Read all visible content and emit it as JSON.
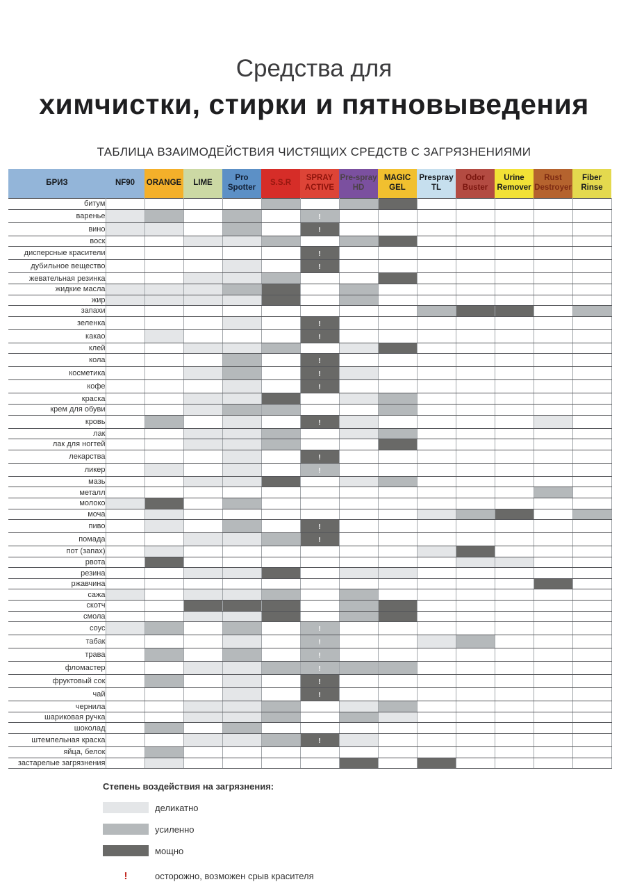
{
  "title": {
    "line1": "Средства для",
    "line2": "химчистки, стирки и пятновыведения"
  },
  "subtitle": "ТАБЛИЦА ВЗАИМОДЕЙСТВИЯ ЧИСТЯЩИХ СРЕДСТВ С ЗАГРЯЗНЕНИЯМИ",
  "brand": {
    "label": "БРИЗ",
    "bg": "#93b5d9",
    "fg": "#16191d"
  },
  "legend": {
    "heading": "Степень воздействия на загрязнения:"
  },
  "chart_data": {
    "type": "table",
    "title": "ТАБЛИЦА ВЗАИМОДЕЙСТВИЯ ЧИСТЯЩИХ СРЕДСТВ С ЗАГРЯЗНЕНИЯМИ",
    "value_codes": {
      "": "нет воздействия",
      "1": "деликатно",
      "2": "усиленно",
      "3": "мощно",
      "!": "осторожно, возможен срыв красителя"
    },
    "intensity": {
      "1": {
        "label": "деликатно",
        "color": "#e4e6e8"
      },
      "2": {
        "label": "усиленно",
        "color": "#b5b9bb"
      },
      "3": {
        "label": "мощно",
        "color": "#696967"
      }
    },
    "warning": {
      "symbol": "!",
      "label": "осторожно, возможен срыв красителя",
      "color": "#c2271f"
    },
    "columns": [
      {
        "label": "NF90",
        "bg": "#93b5d9",
        "fg": "#16191d"
      },
      {
        "label": "ORANGE",
        "bg": "#f4b02a",
        "fg": "#16191d"
      },
      {
        "label": "LIME",
        "bg": "#ccd9a4",
        "fg": "#16191d"
      },
      {
        "label": "Pro Spotter",
        "bg": "#5c90c6",
        "fg": "#122036"
      },
      {
        "label": "S.S.R",
        "bg": "#d62d28",
        "fg": "#97170f"
      },
      {
        "label": "SPRAY ACTIVE",
        "bg": "#dd4437",
        "fg": "#8e130b"
      },
      {
        "label": "Pre-spray HD",
        "bg": "#7b509f",
        "fg": "#4c4148"
      },
      {
        "label": "MAGIC GEL",
        "bg": "#f1c02f",
        "fg": "#16191d"
      },
      {
        "label": "Prespray TL",
        "bg": "#c6dfee",
        "fg": "#16191d"
      },
      {
        "label": "Odor Buster",
        "bg": "#b34b42",
        "fg": "#79150e"
      },
      {
        "label": "Urine Remover",
        "bg": "#f2e136",
        "fg": "#16191d"
      },
      {
        "label": "Rust Destroyer",
        "bg": "#b5632e",
        "fg": "#7c2a12"
      },
      {
        "label": "Fiber Rinse",
        "bg": "#e4d94e",
        "fg": "#16191d"
      }
    ],
    "rows": [
      {
        "label": "битум",
        "cells": [
          "",
          "",
          "",
          "",
          "2",
          "",
          "2",
          "3",
          "",
          "",
          "",
          "",
          ""
        ]
      },
      {
        "label": "варенье",
        "cells": [
          "1",
          "2",
          "",
          "2",
          "",
          "2!",
          "",
          "",
          "",
          "",
          "",
          "",
          ""
        ]
      },
      {
        "label": "вино",
        "cells": [
          "1",
          "1",
          "",
          "2",
          "",
          "3!",
          "",
          "",
          "",
          "",
          "",
          "",
          ""
        ]
      },
      {
        "label": "воск",
        "cells": [
          "",
          "",
          "1",
          "1",
          "2",
          "",
          "2",
          "3",
          "",
          "",
          "",
          "",
          ""
        ]
      },
      {
        "label": "дисперсные красители",
        "cells": [
          "",
          "",
          "",
          "",
          "",
          "3!",
          "",
          "",
          "",
          "",
          "",
          "",
          ""
        ]
      },
      {
        "label": "дубильное вещество",
        "cells": [
          "",
          "",
          "",
          "1",
          "",
          "3!",
          "",
          "",
          "",
          "",
          "",
          "",
          ""
        ]
      },
      {
        "label": "жевательная резинка",
        "cells": [
          "",
          "",
          "1",
          "1",
          "2",
          "",
          "",
          "3",
          "",
          "",
          "",
          "",
          ""
        ]
      },
      {
        "label": "жидкие масла",
        "cells": [
          "1",
          "1",
          "1",
          "2",
          "3",
          "",
          "2",
          "",
          "",
          "",
          "",
          "",
          ""
        ]
      },
      {
        "label": "жир",
        "cells": [
          "1",
          "1",
          "1",
          "1",
          "3",
          "",
          "2",
          "",
          "",
          "",
          "",
          "",
          ""
        ]
      },
      {
        "label": "запахи",
        "cells": [
          "",
          "",
          "",
          "",
          "",
          "",
          "",
          "",
          "2",
          "3",
          "3",
          "",
          "2"
        ]
      },
      {
        "label": "зеленка",
        "cells": [
          "",
          "",
          "",
          "1",
          "",
          "3!",
          "",
          "",
          "",
          "",
          "",
          "",
          ""
        ]
      },
      {
        "label": "какао",
        "cells": [
          "",
          "1",
          "",
          "",
          "",
          "3!",
          "",
          "",
          "",
          "",
          "",
          "",
          ""
        ]
      },
      {
        "label": "клей",
        "cells": [
          "",
          "",
          "1",
          "1",
          "2",
          "",
          "1",
          "3",
          "",
          "",
          "",
          "",
          ""
        ]
      },
      {
        "label": "кола",
        "cells": [
          "",
          "",
          "",
          "2",
          "",
          "3!",
          "",
          "",
          "",
          "",
          "",
          "",
          ""
        ]
      },
      {
        "label": "косметика",
        "cells": [
          "",
          "",
          "1",
          "2",
          "",
          "3!",
          "1",
          "",
          "",
          "",
          "",
          "",
          ""
        ]
      },
      {
        "label": "кофе",
        "cells": [
          "",
          "",
          "",
          "1",
          "",
          "3!",
          "",
          "",
          "",
          "",
          "",
          "",
          ""
        ]
      },
      {
        "label": "краска",
        "cells": [
          "",
          "",
          "1",
          "1",
          "3",
          "",
          "1",
          "2",
          "",
          "",
          "",
          "",
          ""
        ]
      },
      {
        "label": "крем для обуви",
        "cells": [
          "",
          "",
          "1",
          "2",
          "2",
          "",
          "",
          "2",
          "",
          "",
          "",
          "",
          ""
        ]
      },
      {
        "label": "кровь",
        "cells": [
          "",
          "2",
          "",
          "1",
          "",
          "3!",
          "1",
          "",
          "",
          "",
          "",
          "1",
          ""
        ]
      },
      {
        "label": "лак",
        "cells": [
          "",
          "",
          "1",
          "1",
          "2",
          "",
          "1",
          "2",
          "",
          "",
          "",
          "",
          ""
        ]
      },
      {
        "label": "лак для ногтей",
        "cells": [
          "",
          "",
          "1",
          "1",
          "2",
          "",
          "",
          "3",
          "",
          "",
          "",
          "",
          ""
        ]
      },
      {
        "label": "лекарства",
        "cells": [
          "",
          "",
          "",
          "1",
          "",
          "3!",
          "",
          "",
          "",
          "",
          "",
          "",
          ""
        ]
      },
      {
        "label": "ликер",
        "cells": [
          "",
          "1",
          "",
          "1",
          "",
          "2!",
          "",
          "",
          "",
          "",
          "",
          "",
          ""
        ]
      },
      {
        "label": "мазь",
        "cells": [
          "",
          "",
          "1",
          "1",
          "3",
          "",
          "1",
          "2",
          "",
          "",
          "",
          "",
          ""
        ]
      },
      {
        "label": "металл",
        "cells": [
          "",
          "",
          "",
          "",
          "",
          "",
          "",
          "",
          "",
          "",
          "",
          "2",
          ""
        ]
      },
      {
        "label": "молоко",
        "cells": [
          "1",
          "3",
          "",
          "2",
          "",
          "",
          "",
          "",
          "",
          "",
          "",
          "",
          ""
        ]
      },
      {
        "label": "моча",
        "cells": [
          "",
          "1",
          "",
          "",
          "",
          "",
          "",
          "",
          "1",
          "2",
          "3",
          "",
          "2"
        ]
      },
      {
        "label": "пиво",
        "cells": [
          "",
          "1",
          "",
          "2",
          "",
          "3!",
          "",
          "",
          "",
          "",
          "",
          "",
          ""
        ]
      },
      {
        "label": "помада",
        "cells": [
          "",
          "",
          "1",
          "1",
          "2",
          "3!",
          "",
          "",
          "",
          "",
          "",
          "",
          ""
        ]
      },
      {
        "label": "пот (запах)",
        "cells": [
          "",
          "1",
          "",
          "",
          "",
          "",
          "",
          "",
          "1",
          "3",
          "",
          "",
          ""
        ]
      },
      {
        "label": "рвота",
        "cells": [
          "",
          "3",
          "",
          "",
          "",
          "",
          "",
          "",
          "",
          "1",
          "1",
          "",
          ""
        ]
      },
      {
        "label": "резина",
        "cells": [
          "",
          "",
          "1",
          "1",
          "3",
          "",
          "1",
          "1",
          "",
          "",
          "",
          "",
          ""
        ]
      },
      {
        "label": "ржавчина",
        "cells": [
          "",
          "",
          "",
          "",
          "",
          "",
          "",
          "",
          "",
          "",
          "",
          "3",
          ""
        ]
      },
      {
        "label": "сажа",
        "cells": [
          "1",
          "",
          "1",
          "1",
          "2",
          "",
          "2",
          "",
          "",
          "",
          "",
          "",
          ""
        ]
      },
      {
        "label": "скотч",
        "cells": [
          "",
          "",
          "3",
          "3",
          "3",
          "",
          "2",
          "3",
          "",
          "",
          "",
          "",
          ""
        ]
      },
      {
        "label": "смола",
        "cells": [
          "",
          "",
          "1",
          "1",
          "3",
          "",
          "2",
          "3",
          "",
          "",
          "",
          "",
          ""
        ]
      },
      {
        "label": "соус",
        "cells": [
          "1",
          "2",
          "",
          "2",
          "",
          "2!",
          "",
          "",
          "",
          "",
          "",
          "",
          ""
        ]
      },
      {
        "label": "табак",
        "cells": [
          "",
          "",
          "",
          "1",
          "",
          "2!",
          "",
          "",
          "1",
          "2",
          "",
          "",
          ""
        ]
      },
      {
        "label": "трава",
        "cells": [
          "",
          "2",
          "",
          "2",
          "",
          "2!",
          "",
          "",
          "",
          "",
          "",
          "",
          ""
        ]
      },
      {
        "label": "фломастер",
        "cells": [
          "",
          "",
          "1",
          "1",
          "2",
          "2!",
          "2",
          "2",
          "",
          "",
          "",
          "",
          ""
        ]
      },
      {
        "label": "фруктовый сок",
        "cells": [
          "",
          "2",
          "",
          "1",
          "",
          "3!",
          "",
          "",
          "",
          "",
          "",
          "",
          ""
        ]
      },
      {
        "label": "чай",
        "cells": [
          "",
          "",
          "",
          "1",
          "",
          "3!",
          "",
          "",
          "",
          "",
          "",
          "",
          ""
        ]
      },
      {
        "label": "чернила",
        "cells": [
          "",
          "",
          "1",
          "1",
          "2",
          "",
          "1",
          "2",
          "",
          "",
          "",
          "",
          ""
        ]
      },
      {
        "label": "шариковая ручка",
        "cells": [
          "",
          "",
          "1",
          "1",
          "2",
          "",
          "2",
          "1",
          "",
          "",
          "",
          "",
          ""
        ]
      },
      {
        "label": "шоколад",
        "cells": [
          "",
          "2",
          "",
          "2",
          "",
          "",
          "",
          "",
          "",
          "",
          "",
          "",
          ""
        ]
      },
      {
        "label": "штемпельная краска",
        "cells": [
          "",
          "",
          "1",
          "1",
          "2",
          "3!",
          "1",
          "",
          "",
          "",
          "",
          "",
          ""
        ]
      },
      {
        "label": "яйца, белок",
        "cells": [
          "",
          "2",
          "",
          "",
          "",
          "",
          "",
          "",
          "",
          "",
          "",
          "",
          ""
        ]
      },
      {
        "label": "застарелые загрязнения",
        "cells": [
          "",
          "1",
          "",
          "",
          "",
          "",
          "3",
          "",
          "3",
          "",
          "",
          "",
          ""
        ]
      }
    ]
  }
}
